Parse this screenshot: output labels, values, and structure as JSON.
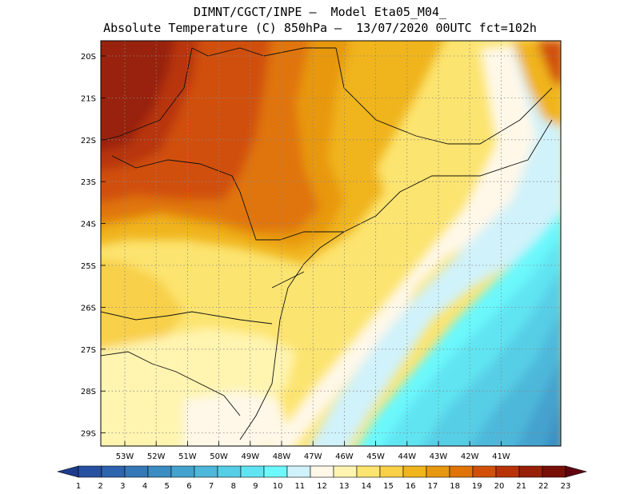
{
  "header": {
    "title_line1": "DIMNT/CGCT/INPE –  Model Eta05_M04_",
    "title_line2": "Absolute Temperature (C) 850hPa –  13/07/2020 00UTC fct=102h"
  },
  "map": {
    "lat_labels": [
      "20S",
      "21S",
      "22S",
      "23S",
      "24S",
      "25S",
      "26S",
      "27S",
      "28S",
      "29S"
    ],
    "lon_labels": [
      "53W",
      "52W",
      "51W",
      "50W",
      "49W",
      "48W",
      "47W",
      "46W",
      "45W",
      "44W",
      "43W",
      "42W",
      "41W"
    ]
  },
  "colorbar": {
    "labels": [
      "1",
      "2",
      "3",
      "4",
      "5",
      "6",
      "7",
      "8",
      "9",
      "10",
      "11",
      "12",
      "13",
      "14",
      "15",
      "16",
      "17",
      "18",
      "19",
      "20",
      "21",
      "22",
      "23"
    ],
    "colors": [
      "#1e3c8c",
      "#2850a0",
      "#2e64ae",
      "#3478b8",
      "#3a8cc2",
      "#44a2ce",
      "#4eb8da",
      "#56cee6",
      "#60e4f2",
      "#6cf8fc",
      "#d0f2fa",
      "#fff8e8",
      "#fff4b0",
      "#fce470",
      "#f8d048",
      "#f0b41c",
      "#e89810",
      "#e07408",
      "#d05008",
      "#b83408",
      "#982008",
      "#781008",
      "#600010"
    ]
  }
}
